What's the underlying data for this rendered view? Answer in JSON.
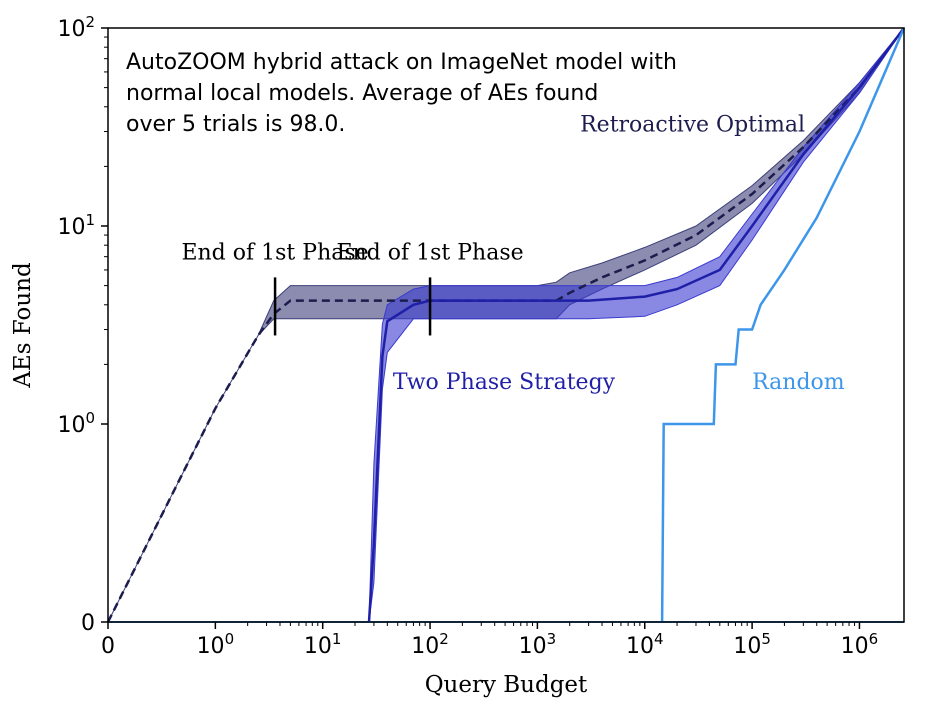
{
  "chart_data": {
    "type": "line",
    "title": "",
    "xlabel": "Query Budget",
    "ylabel": "AEs Found",
    "x_scale": "symlog",
    "y_scale": "symlog",
    "xlim": [
      0,
      2600000
    ],
    "ylim": [
      0,
      100
    ],
    "grid": false,
    "annotation": [
      "AutoZOOM hybrid attack on ImageNet model with",
      "normal local models. Average of AEs found",
      "over 5 trials is 98.0."
    ],
    "x_ticks": [
      {
        "value": 0,
        "base": "0",
        "exp": ""
      },
      {
        "value": 1,
        "base": "10",
        "exp": "0"
      },
      {
        "value": 10,
        "base": "10",
        "exp": "1"
      },
      {
        "value": 100,
        "base": "10",
        "exp": "2"
      },
      {
        "value": 1000,
        "base": "10",
        "exp": "3"
      },
      {
        "value": 10000,
        "base": "10",
        "exp": "4"
      },
      {
        "value": 100000,
        "base": "10",
        "exp": "5"
      },
      {
        "value": 1000000,
        "base": "10",
        "exp": "6"
      }
    ],
    "y_ticks": [
      {
        "value": 0,
        "base": "0",
        "exp": ""
      },
      {
        "value": 1,
        "base": "10",
        "exp": "0"
      },
      {
        "value": 10,
        "base": "10",
        "exp": "1"
      },
      {
        "value": 100,
        "base": "10",
        "exp": "2"
      }
    ],
    "series": [
      {
        "name": "Retroactive Optimal",
        "color": "#1c1c4e",
        "band_color": "#3d3f7a",
        "dashed": true,
        "x": [
          0,
          1,
          2.5,
          3.5,
          5,
          10,
          100,
          1000,
          1500,
          2000,
          4000,
          10000,
          30000,
          100000,
          300000,
          1000000,
          2600000
        ],
        "y": [
          0,
          1.2,
          2.8,
          3.6,
          4.2,
          4.2,
          4.2,
          4.2,
          4.2,
          4.6,
          5.5,
          6.7,
          9.0,
          14.5,
          25.0,
          50.0,
          100.0
        ],
        "y_low": [
          0,
          1.2,
          2.8,
          3.4,
          3.4,
          3.4,
          3.4,
          3.4,
          3.4,
          4.0,
          4.8,
          6.0,
          8.0,
          13.0,
          23.0,
          47.0,
          100.0
        ],
        "y_high": [
          0,
          1.2,
          2.8,
          4.2,
          5.0,
          5.0,
          5.0,
          5.0,
          5.2,
          5.8,
          6.5,
          7.8,
          10.0,
          16.0,
          27.0,
          53.0,
          100.0
        ],
        "label_text": "Retroactive Optimal",
        "label_x": 2500,
        "label_y": 30
      },
      {
        "name": "Two Phase Strategy",
        "color": "#1f1fa8",
        "band_color": "#3a3ad0",
        "dashed": false,
        "x": [
          27,
          30,
          36,
          40,
          70,
          100,
          1000,
          3000,
          10000,
          20000,
          50000,
          100000,
          300000,
          1000000,
          2600000
        ],
        "y": [
          0,
          0.4,
          2.2,
          3.3,
          4.0,
          4.2,
          4.2,
          4.2,
          4.4,
          4.8,
          6.0,
          10.0,
          23.0,
          50.0,
          100.0
        ],
        "y_low": [
          0,
          0.2,
          1.5,
          2.3,
          3.4,
          3.4,
          3.4,
          3.4,
          3.5,
          4.0,
          5.0,
          8.5,
          21.0,
          47.0,
          100.0
        ],
        "y_high": [
          0,
          0.8,
          3.2,
          4.0,
          4.8,
          5.0,
          5.0,
          5.0,
          5.0,
          5.5,
          7.0,
          11.5,
          25.0,
          53.0,
          100.0
        ],
        "label_text": "Two Phase Strategy",
        "label_x": 45,
        "label_y": 1.5
      },
      {
        "name": "Random",
        "color": "#3d96ea",
        "band_color": "#6cb0ee",
        "dashed": false,
        "x": [
          14500,
          15000,
          44000,
          46000,
          70000,
          75000,
          100000,
          120000,
          200000,
          400000,
          1000000,
          2600000
        ],
        "y": [
          0,
          1,
          1,
          2,
          2,
          3,
          3,
          4,
          6,
          11,
          30,
          100
        ],
        "y_low": [
          0,
          1,
          1,
          2,
          2,
          3,
          3,
          4,
          6,
          11,
          30,
          100
        ],
        "y_high": [
          0,
          1,
          1,
          2,
          2,
          3,
          3,
          4,
          6,
          11,
          30,
          100
        ],
        "label_text": "Random",
        "label_x": 100000,
        "label_y": 1.5
      }
    ],
    "phase_markers": [
      {
        "label": "End of 1st Phase",
        "x": 3.6,
        "y_from": 2.8,
        "y_to": 5.5
      },
      {
        "label": "End of 1st Phase",
        "x": 100,
        "y_from": 2.8,
        "y_to": 5.5
      }
    ]
  }
}
